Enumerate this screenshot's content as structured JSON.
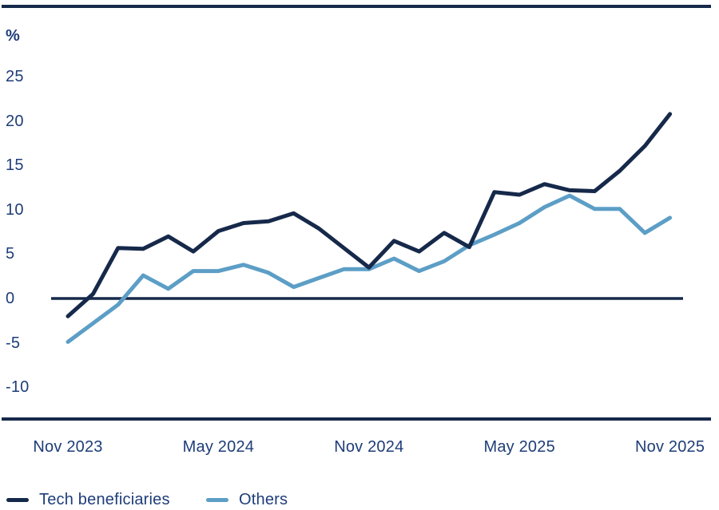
{
  "chart_data": {
    "type": "line",
    "title": "",
    "xlabel": "",
    "ylabel": "%",
    "ylim": [
      -10,
      25
    ],
    "grid": false,
    "zero_baseline": true,
    "legend_position": "bottom-left",
    "colors": {
      "axis": "#16294a",
      "text": "#1e3d78",
      "background": "#ffffff"
    },
    "categories": [
      "Nov 2023",
      "Dec 2023",
      "Jan 2024",
      "Feb 2024",
      "Mar 2024",
      "Apr 2024",
      "May 2024",
      "Jun 2024",
      "Jul 2024",
      "Aug 2024",
      "Sep 2024",
      "Oct 2024",
      "Nov 2024",
      "Dec 2024",
      "Jan 2025",
      "Feb 2025",
      "Mar 2025",
      "Apr 2025",
      "May 2025",
      "Jun 2025",
      "Jul 2025",
      "Aug 2025",
      "Sep 2025",
      "Oct 2025",
      "Nov 2025"
    ],
    "series": [
      {
        "name": "Tech beneficiaries",
        "color": "#16294a",
        "values": [
          -2.0,
          0.5,
          5.7,
          5.6,
          7.0,
          5.3,
          7.6,
          8.5,
          8.7,
          9.6,
          7.9,
          5.7,
          3.5,
          6.5,
          5.3,
          7.4,
          5.8,
          12.0,
          11.7,
          12.9,
          12.2,
          12.1,
          14.4,
          17.2,
          20.8
        ]
      },
      {
        "name": "Others",
        "color": "#5c9ec6",
        "values": [
          -4.9,
          -2.8,
          -0.7,
          2.6,
          1.1,
          3.1,
          3.1,
          3.8,
          2.9,
          1.3,
          2.3,
          3.3,
          3.3,
          4.5,
          3.1,
          4.2,
          6.0,
          7.2,
          8.5,
          10.3,
          11.6,
          10.1,
          10.1,
          7.4,
          9.1
        ]
      }
    ],
    "x_tick_labels": [
      {
        "label": "Nov 2023",
        "index": 0
      },
      {
        "label": "May 2024",
        "index": 6
      },
      {
        "label": "Nov 2024",
        "index": 12
      },
      {
        "label": "May 2025",
        "index": 18
      },
      {
        "label": "Nov 2025",
        "index": 24
      }
    ],
    "y_ticks": [
      {
        "label": "25",
        "value": 25
      },
      {
        "label": "20",
        "value": 20
      },
      {
        "label": "15",
        "value": 15
      },
      {
        "label": "10",
        "value": 10
      },
      {
        "label": "5",
        "value": 5
      },
      {
        "label": "0",
        "value": 0
      },
      {
        "label": "-5",
        "value": -5
      },
      {
        "label": "-10",
        "value": -10
      }
    ]
  }
}
